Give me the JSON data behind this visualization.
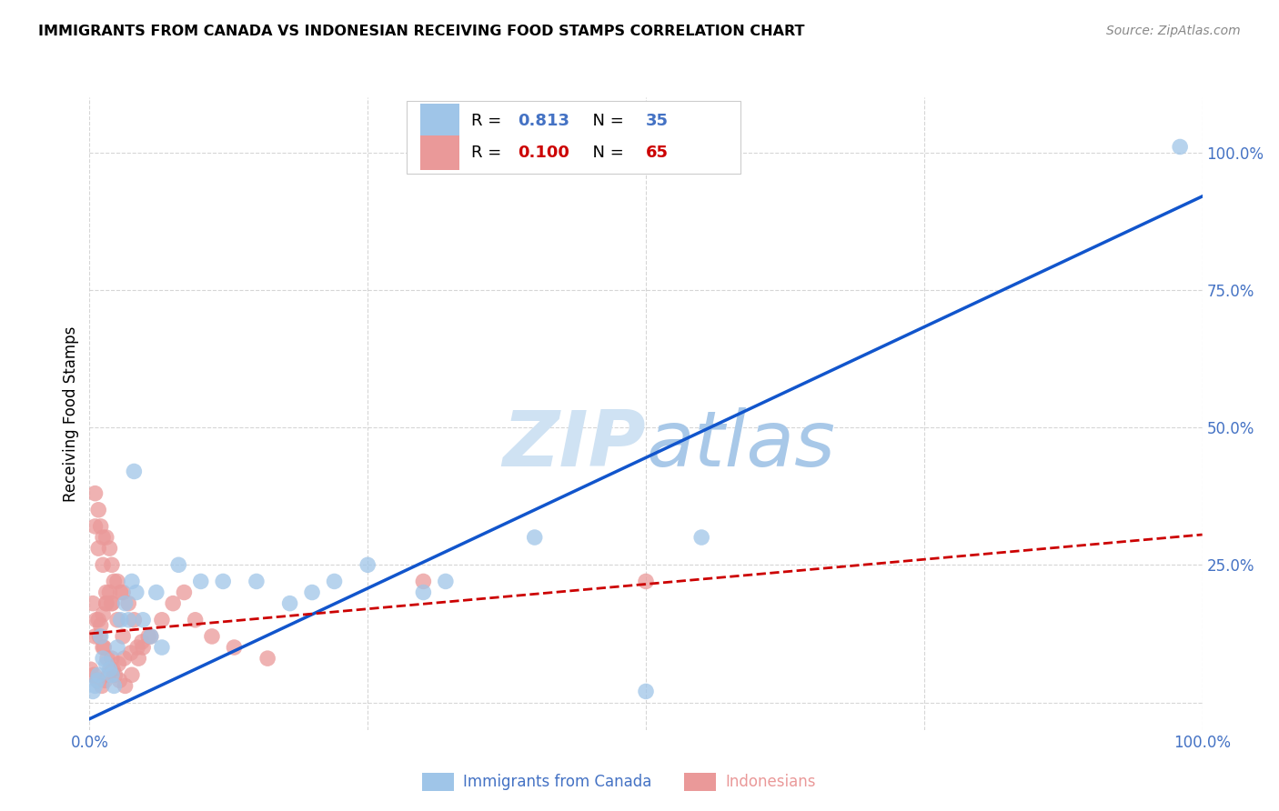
{
  "title": "IMMIGRANTS FROM CANADA VS INDONESIAN RECEIVING FOOD STAMPS CORRELATION CHART",
  "source": "Source: ZipAtlas.com",
  "tick_color": "#4472c4",
  "ylabel": "Receiving Food Stamps",
  "xlim": [
    0,
    1.0
  ],
  "ylim": [
    -0.05,
    1.1
  ],
  "canada_R": 0.813,
  "canada_N": 35,
  "indonesia_R": 0.1,
  "indonesia_N": 65,
  "canada_color": "#9fc5e8",
  "indonesia_color": "#ea9999",
  "canada_line_color": "#1155cc",
  "indonesia_line_color": "#cc0000",
  "watermark_color": "#cfe2f3",
  "background_color": "#ffffff",
  "canada_line_slope": 0.95,
  "canada_line_intercept": -0.03,
  "indonesia_line_slope": 0.18,
  "indonesia_line_intercept": 0.125,
  "canada_scatter_x": [
    0.008,
    0.012,
    0.018,
    0.01,
    0.005,
    0.015,
    0.025,
    0.035,
    0.04,
    0.02,
    0.06,
    0.08,
    0.1,
    0.12,
    0.15,
    0.18,
    0.2,
    0.22,
    0.25,
    0.028,
    0.032,
    0.038,
    0.042,
    0.048,
    0.055,
    0.065,
    0.3,
    0.32,
    0.55,
    0.4,
    0.003,
    0.007,
    0.022,
    0.5,
    0.98
  ],
  "canada_scatter_y": [
    0.05,
    0.08,
    0.06,
    0.12,
    0.03,
    0.07,
    0.1,
    0.15,
    0.42,
    0.05,
    0.2,
    0.25,
    0.22,
    0.22,
    0.22,
    0.18,
    0.2,
    0.22,
    0.25,
    0.15,
    0.18,
    0.22,
    0.2,
    0.15,
    0.12,
    0.1,
    0.2,
    0.22,
    0.3,
    0.3,
    0.02,
    0.04,
    0.03,
    0.02,
    1.01
  ],
  "indonesia_scatter_x": [
    0.005,
    0.008,
    0.012,
    0.015,
    0.02,
    0.008,
    0.012,
    0.018,
    0.022,
    0.028,
    0.005,
    0.008,
    0.012,
    0.015,
    0.02,
    0.025,
    0.03,
    0.005,
    0.01,
    0.015,
    0.02,
    0.025,
    0.03,
    0.035,
    0.04,
    0.01,
    0.012,
    0.015,
    0.018,
    0.02,
    0.003,
    0.006,
    0.009,
    0.013,
    0.016,
    0.019,
    0.023,
    0.027,
    0.032,
    0.038,
    0.044,
    0.048,
    0.055,
    0.065,
    0.075,
    0.085,
    0.095,
    0.11,
    0.13,
    0.16,
    0.001,
    0.004,
    0.007,
    0.011,
    0.014,
    0.017,
    0.021,
    0.026,
    0.031,
    0.037,
    0.043,
    0.047,
    0.053,
    0.3,
    0.5
  ],
  "indonesia_scatter_y": [
    0.12,
    0.15,
    0.1,
    0.18,
    0.08,
    0.35,
    0.3,
    0.28,
    0.22,
    0.2,
    0.32,
    0.28,
    0.25,
    0.2,
    0.18,
    0.15,
    0.12,
    0.38,
    0.32,
    0.3,
    0.25,
    0.22,
    0.2,
    0.18,
    0.15,
    0.14,
    0.16,
    0.18,
    0.2,
    0.18,
    0.18,
    0.15,
    0.12,
    0.1,
    0.08,
    0.06,
    0.05,
    0.04,
    0.03,
    0.05,
    0.08,
    0.1,
    0.12,
    0.15,
    0.18,
    0.2,
    0.15,
    0.12,
    0.1,
    0.08,
    0.06,
    0.05,
    0.04,
    0.03,
    0.04,
    0.05,
    0.06,
    0.07,
    0.08,
    0.09,
    0.1,
    0.11,
    0.12,
    0.22,
    0.22
  ]
}
